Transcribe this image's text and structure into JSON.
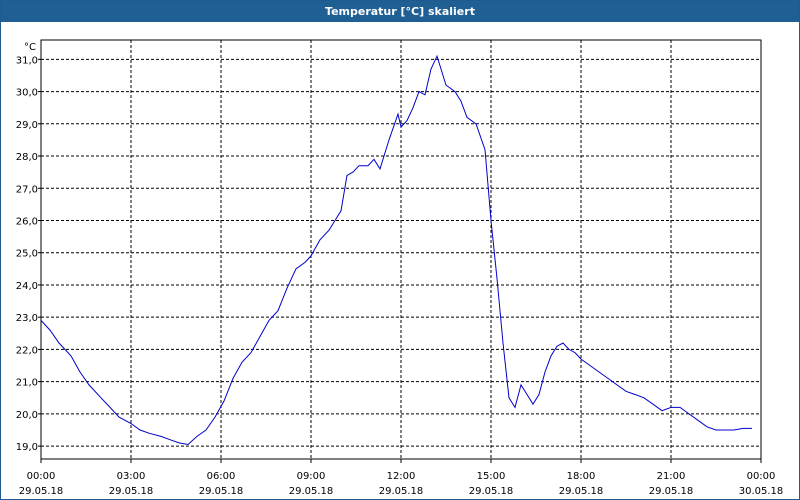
{
  "window": {
    "title": "Temperatur [°C] skaliert"
  },
  "chart_data": {
    "type": "line",
    "title": "Temperatur [°C] skaliert",
    "ylabel": "°C",
    "ylim": [
      18.6,
      31.6
    ],
    "yticks": [
      "19,0",
      "20,0",
      "21,0",
      "22,0",
      "23,0",
      "24,0",
      "25,0",
      "26,0",
      "27,0",
      "28,0",
      "29,0",
      "30,0",
      "31,0"
    ],
    "yvalues": [
      19,
      20,
      21,
      22,
      23,
      24,
      25,
      26,
      27,
      28,
      29,
      30,
      31
    ],
    "xlim": [
      0,
      24
    ],
    "xticks": [
      {
        "time": "00:00",
        "date": "29.05.18"
      },
      {
        "time": "03:00",
        "date": "29.05.18"
      },
      {
        "time": "06:00",
        "date": "29.05.18"
      },
      {
        "time": "09:00",
        "date": "29.05.18"
      },
      {
        "time": "12:00",
        "date": "29.05.18"
      },
      {
        "time": "15:00",
        "date": "29.05.18"
      },
      {
        "time": "18:00",
        "date": "29.05.18"
      },
      {
        "time": "21:00",
        "date": "29.05.18"
      },
      {
        "time": "00:00",
        "date": "30.05.18"
      }
    ],
    "grid": true,
    "line_color": "#0000cc",
    "series": [
      {
        "x": [
          0.0,
          0.3,
          0.6,
          1.0,
          1.3,
          1.6,
          2.0,
          2.3,
          2.6,
          3.0,
          3.3,
          3.6,
          4.0,
          4.3,
          4.6,
          4.9,
          5.2,
          5.5,
          5.8,
          6.1,
          6.4,
          6.7,
          7.0,
          7.3,
          7.6,
          7.9,
          8.2,
          8.5,
          8.8,
          9.0,
          9.3,
          9.6,
          9.8,
          10.0,
          10.2,
          10.4,
          10.6,
          10.9,
          11.1,
          11.3,
          11.6,
          11.9,
          12.0,
          12.2,
          12.4,
          12.6,
          12.8,
          13.0,
          13.2,
          13.5,
          13.8,
          14.0,
          14.2,
          14.5,
          14.8,
          15.0,
          15.2,
          15.4,
          15.6,
          15.8,
          16.0,
          16.2,
          16.4,
          16.6,
          16.8,
          17.0,
          17.2,
          17.4,
          17.6,
          17.8,
          18.0,
          18.3,
          18.6,
          18.9,
          19.2,
          19.5,
          19.8,
          20.1,
          20.4,
          20.7,
          21.0,
          21.3,
          21.6,
          21.9,
          22.2,
          22.5,
          22.8,
          23.1,
          23.4,
          23.7
        ],
        "y": [
          22.9,
          22.6,
          22.2,
          21.8,
          21.3,
          20.9,
          20.5,
          20.2,
          19.9,
          19.7,
          19.5,
          19.4,
          19.3,
          19.2,
          19.1,
          19.05,
          19.3,
          19.5,
          19.9,
          20.4,
          21.1,
          21.6,
          21.9,
          22.4,
          22.9,
          23.2,
          23.9,
          24.5,
          24.7,
          24.9,
          25.4,
          25.7,
          26.0,
          26.3,
          27.4,
          27.5,
          27.7,
          27.7,
          27.9,
          27.6,
          28.5,
          29.3,
          28.9,
          29.1,
          29.5,
          30.0,
          29.9,
          30.7,
          31.1,
          30.2,
          30.0,
          29.7,
          29.2,
          29.0,
          28.2,
          26.0,
          24.2,
          22.2,
          20.5,
          20.2,
          20.9,
          20.6,
          20.3,
          20.6,
          21.3,
          21.8,
          22.1,
          22.2,
          22.0,
          21.9,
          21.7,
          21.5,
          21.3,
          21.1,
          20.9,
          20.7,
          20.6,
          20.5,
          20.3,
          20.1,
          20.2,
          20.2,
          20.0,
          19.8,
          19.6,
          19.5,
          19.5,
          19.5,
          19.55,
          19.55
        ]
      }
    ]
  }
}
